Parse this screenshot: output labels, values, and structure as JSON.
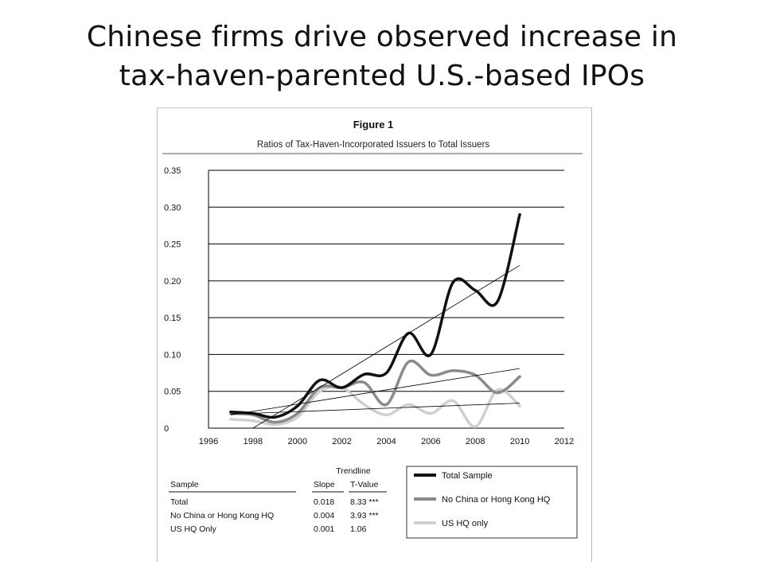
{
  "slide": {
    "title_line1": "Chinese firms drive observed increase in",
    "title_line2": "tax-haven-parented U.S.-based IPOs"
  },
  "figure": {
    "label": "Figure 1",
    "subtitle": "Ratios of Tax-Haven-Incorporated Issuers to Total Issuers"
  },
  "chart_data": {
    "type": "line",
    "title": "Figure 1",
    "subtitle": "Ratios of Tax-Haven-Incorporated Issuers to Total Issuers",
    "xlabel": "",
    "ylabel": "",
    "xlim": [
      1996,
      2012
    ],
    "ylim": [
      0,
      0.35
    ],
    "x_ticks": [
      "1996",
      "1998",
      "2000",
      "2002",
      "2004",
      "2006",
      "2008",
      "2010",
      "2012"
    ],
    "y_ticks": [
      "0",
      "0.05",
      "0.10",
      "0.15",
      "0.20",
      "0.25",
      "0.30",
      "0.35"
    ],
    "grid": "horizontal",
    "legend_position": "bottom-right",
    "colors": {
      "total": "#111111",
      "no_china": "#8a8a8a",
      "us_hq": "#cfcfcf",
      "trend": "#000000",
      "grid": "#000000"
    },
    "x": [
      1997,
      1998,
      1999,
      2000,
      2001,
      2002,
      2003,
      2004,
      2005,
      2006,
      2007,
      2008,
      2009,
      2010
    ],
    "series": [
      {
        "name": "Total Sample",
        "values": [
          0.022,
          0.02,
          0.015,
          0.03,
          0.065,
          0.055,
          0.073,
          0.075,
          0.129,
          0.1,
          0.198,
          0.187,
          0.172,
          0.29
        ]
      },
      {
        "name": "No China or Hong Kong HQ",
        "values": [
          0.02,
          0.018,
          0.008,
          0.02,
          0.055,
          0.055,
          0.062,
          0.032,
          0.09,
          0.072,
          0.078,
          0.072,
          0.048,
          0.07
        ]
      },
      {
        "name": "US HQ only",
        "values": [
          0.012,
          0.01,
          0.005,
          0.015,
          0.05,
          0.055,
          0.032,
          0.018,
          0.032,
          0.02,
          0.037,
          0.002,
          0.052,
          0.03
        ]
      }
    ],
    "trendlines": [
      {
        "series": "Total Sample",
        "from": [
          1998,
          0.0
        ],
        "to": [
          2010,
          0.221
        ]
      },
      {
        "series": "No China or Hong Kong HQ",
        "from": [
          1997,
          0.018
        ],
        "to": [
          2010,
          0.081
        ]
      },
      {
        "series": "US HQ only",
        "from": [
          1997,
          0.019
        ],
        "to": [
          2010,
          0.034
        ]
      }
    ]
  },
  "trend_table": {
    "heading": "Trendline",
    "columns": [
      "Sample",
      "Slope",
      "T-Value"
    ],
    "rows": [
      [
        "Total",
        "0.018",
        "8.33 ***"
      ],
      [
        "No China or Hong Kong HQ",
        "0.004",
        "3.93 ***"
      ],
      [
        "US HQ Only",
        "0.001",
        "1.06"
      ]
    ]
  },
  "legend": [
    "Total Sample",
    "No China or Hong Kong HQ",
    "US HQ only"
  ]
}
